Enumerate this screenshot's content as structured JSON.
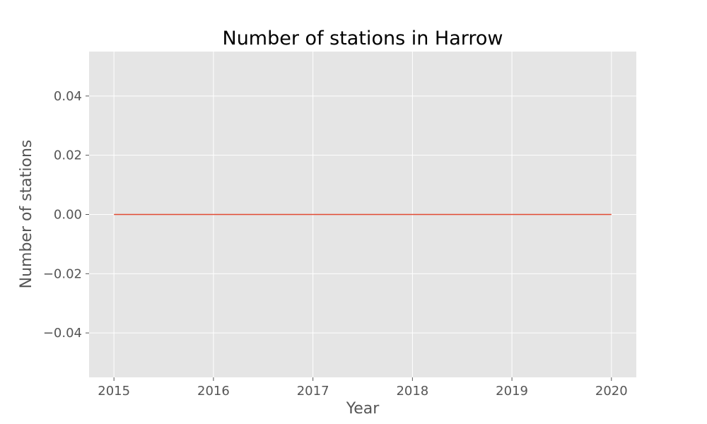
{
  "chart_data": {
    "type": "line",
    "title": "Number of stations in Harrow",
    "xlabel": "Year",
    "ylabel": "Number of stations",
    "x": [
      2015,
      2016,
      2017,
      2018,
      2019,
      2020
    ],
    "series": [
      {
        "values": [
          0,
          0,
          0,
          0,
          0,
          0
        ],
        "color": "#E24A33"
      }
    ],
    "xlim": [
      2014.75,
      2020.25
    ],
    "ylim": [
      -0.055,
      0.055
    ],
    "xticks": [
      2015,
      2016,
      2017,
      2018,
      2019,
      2020
    ],
    "xtick_labels": [
      "2015",
      "2016",
      "2017",
      "2018",
      "2019",
      "2020"
    ],
    "yticks": [
      -0.04,
      -0.02,
      0.0,
      0.02,
      0.04
    ],
    "ytick_labels": [
      "−0.04",
      "−0.02",
      "0.00",
      "0.02",
      "0.04"
    ],
    "grid": true,
    "style": {
      "plot_background": "#E5E5E5",
      "grid_color": "#FFFFFF",
      "tick_color": "#555555"
    }
  }
}
